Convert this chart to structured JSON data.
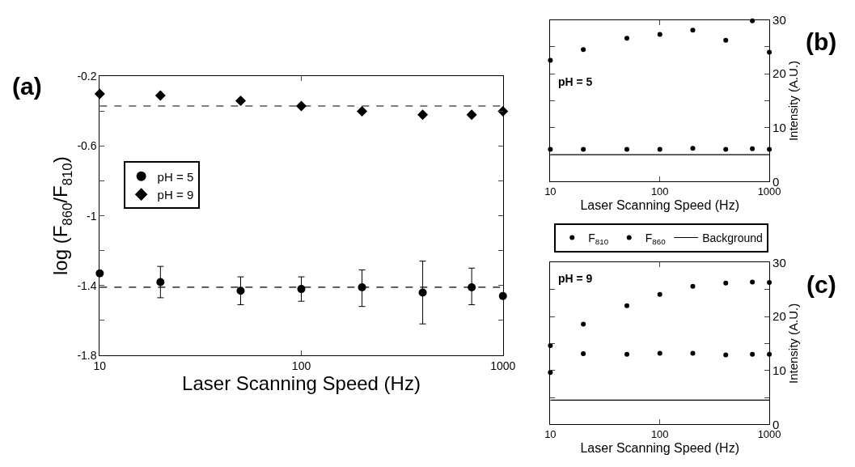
{
  "chart_data": [
    {
      "type": "scatter",
      "xlabel": "Laser Scanning Speed (Hz)",
      "ylabel": "log (F$_{860}$/F$_{810}$)",
      "log": "x",
      "grid": false,
      "legend": "left",
      "x": [
        10,
        20,
        50,
        100,
        200,
        400,
        700,
        1000
      ],
      "xlim": [
        10,
        1000
      ],
      "xticks": [
        10,
        100,
        1000
      ],
      "ylim": [
        -1.8,
        -0.2
      ],
      "yticks": [
        -1.8,
        {
          "value": -1.6,
          "label": null
        },
        -1.4,
        {
          "value": -1.2,
          "label": null
        },
        -1,
        {
          "value": -0.8,
          "label": null
        },
        -0.6,
        {
          "value": -0.4,
          "label": null
        },
        -0.2
      ],
      "series": [
        {
          "name": "pH = 5",
          "color": "#000000",
          "marker": "circle",
          "values": [
            -1.33,
            -1.38,
            -1.43,
            -1.42,
            -1.41,
            -1.44,
            -1.41,
            -1.46
          ],
          "errors": [
            null,
            [
              -1.47,
              -1.29
            ],
            [
              -1.51,
              -1.35
            ],
            [
              -1.49,
              -1.35
            ],
            [
              -1.52,
              -1.31
            ],
            [
              -1.62,
              -1.26
            ],
            [
              -1.51,
              -1.3
            ],
            null
          ]
        },
        {
          "name": "pH = 9",
          "color": "#000000",
          "marker": "diamond",
          "values": [
            -0.3,
            -0.31,
            -0.34,
            -0.37,
            -0.4,
            -0.42,
            -0.42,
            -0.4
          ]
        }
      ],
      "ref_lines": [
        {
          "axis": "y",
          "value": -1.41,
          "color": "#000000",
          "line_style": "dashed"
        },
        {
          "axis": "y",
          "value": -0.37,
          "color": "#000000",
          "line_style": "dashed"
        }
      ],
      "annotations": [
        "(a)"
      ]
    },
    {
      "type": "scatter",
      "xlabel": "Laser Scanning Speed (Hz)",
      "ylabel": "Intensity (A.U.)",
      "log": "x",
      "grid": false,
      "legend": "bottom",
      "x": [
        10,
        20,
        50,
        100,
        200,
        400,
        700,
        1000
      ],
      "xlim": [
        10,
        1000
      ],
      "xticks": [
        10,
        100,
        1000
      ],
      "ylim": [
        0,
        30
      ],
      "yticks": [
        0,
        {
          "value": 5,
          "label": null
        },
        10,
        {
          "value": 15,
          "label": null
        },
        20,
        {
          "value": 25,
          "label": null
        },
        30
      ],
      "series": [
        {
          "name": "F$_{810}$",
          "color": "#000000",
          "marker": "circle",
          "values": [
            22.5,
            24.5,
            26.6,
            27.3,
            28.1,
            26.2,
            29.8,
            24
          ]
        },
        {
          "name": "F$_{860}$",
          "color": "#000000",
          "marker": "circle",
          "values": [
            6,
            6,
            6,
            6,
            6.2,
            6,
            6.1,
            6
          ]
        },
        {
          "name": "Background",
          "type": "line",
          "color": "#000000",
          "marker": "none",
          "values": [
            5,
            5,
            5,
            5,
            5,
            5,
            5,
            5
          ]
        }
      ],
      "annotations": [
        "(b)",
        "pH = 5"
      ]
    },
    {
      "type": "scatter",
      "xlabel": "Laser Scanning Speed (Hz)",
      "ylabel": "Intensity (A.U.)",
      "log": "x",
      "grid": false,
      "x": [
        10,
        20,
        50,
        100,
        200,
        400,
        700,
        1000
      ],
      "xlim": [
        10,
        1000
      ],
      "xticks": [
        10,
        100,
        1000
      ],
      "ylim": [
        0,
        30
      ],
      "yticks": [
        0,
        {
          "value": 5,
          "label": null
        },
        10,
        {
          "value": 15,
          "label": null
        },
        20,
        {
          "value": 25,
          "label": null
        },
        30
      ],
      "series": [
        {
          "color": "#000000",
          "marker": "circle",
          "values": [
            14.6,
            18.6,
            22,
            24.1,
            25.6,
            26.2,
            26.4,
            26.3
          ]
        },
        {
          "color": "#000000",
          "marker": "circle",
          "values": [
            9.6,
            13.1,
            13,
            13.2,
            13.2,
            12.9,
            13,
            13
          ]
        },
        {
          "type": "line",
          "color": "#000000",
          "marker": "none",
          "values": [
            4.5,
            4.5,
            4.5,
            4.5,
            4.5,
            4.5,
            4.5,
            4.5
          ]
        }
      ],
      "annotations": [
        "(c)",
        "pH = 9"
      ]
    }
  ]
}
